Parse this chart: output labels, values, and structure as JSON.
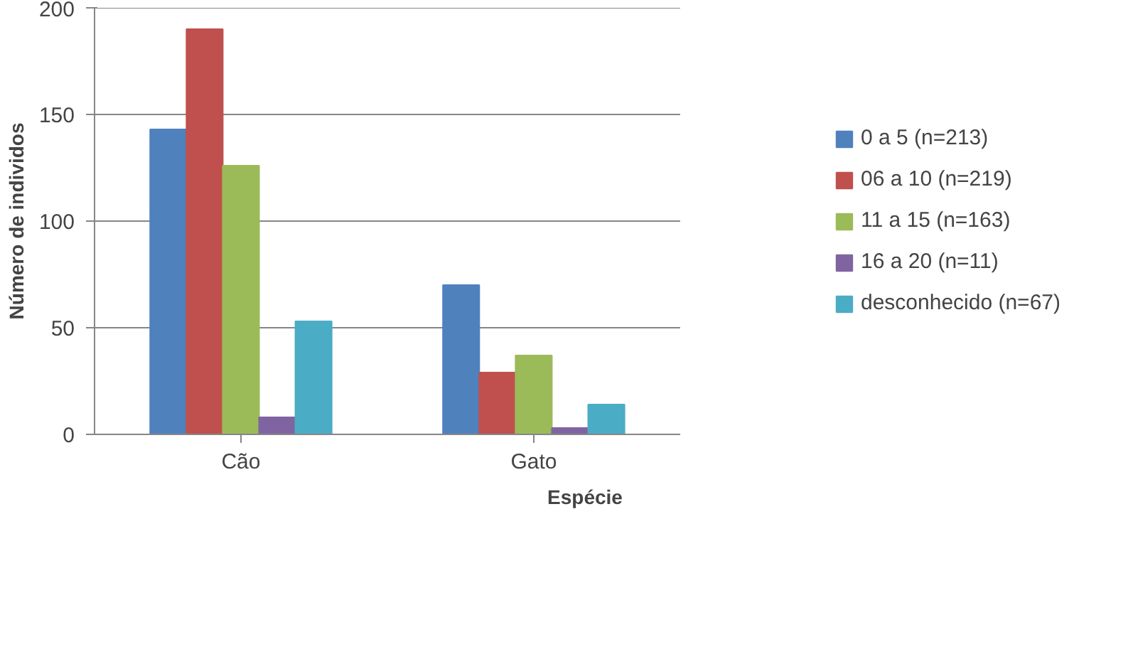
{
  "chart_data": {
    "type": "bar",
    "xlabel": "Espécie",
    "ylabel": "Número de individos",
    "categories": [
      "Cão",
      "Gato"
    ],
    "series": [
      {
        "name": "0 a 5 (n=213)",
        "color": "#4f81bd",
        "values": [
          143,
          70
        ]
      },
      {
        "name": "06 a 10 (n=219)",
        "color": "#c0504d",
        "values": [
          190,
          29
        ]
      },
      {
        "name": "11 a 15 (n=163)",
        "color": "#9bbb59",
        "values": [
          126,
          37
        ]
      },
      {
        "name": "16 a 20 (n=11)",
        "color": "#8064a2",
        "values": [
          8,
          3
        ]
      },
      {
        "name": "desconhecido (n=67)",
        "color": "#4bacc6",
        "values": [
          53,
          14
        ]
      }
    ],
    "ylim": [
      0,
      200
    ],
    "yticks": [
      0,
      50,
      100,
      150,
      200
    ],
    "grid": "y",
    "legend": "right"
  }
}
